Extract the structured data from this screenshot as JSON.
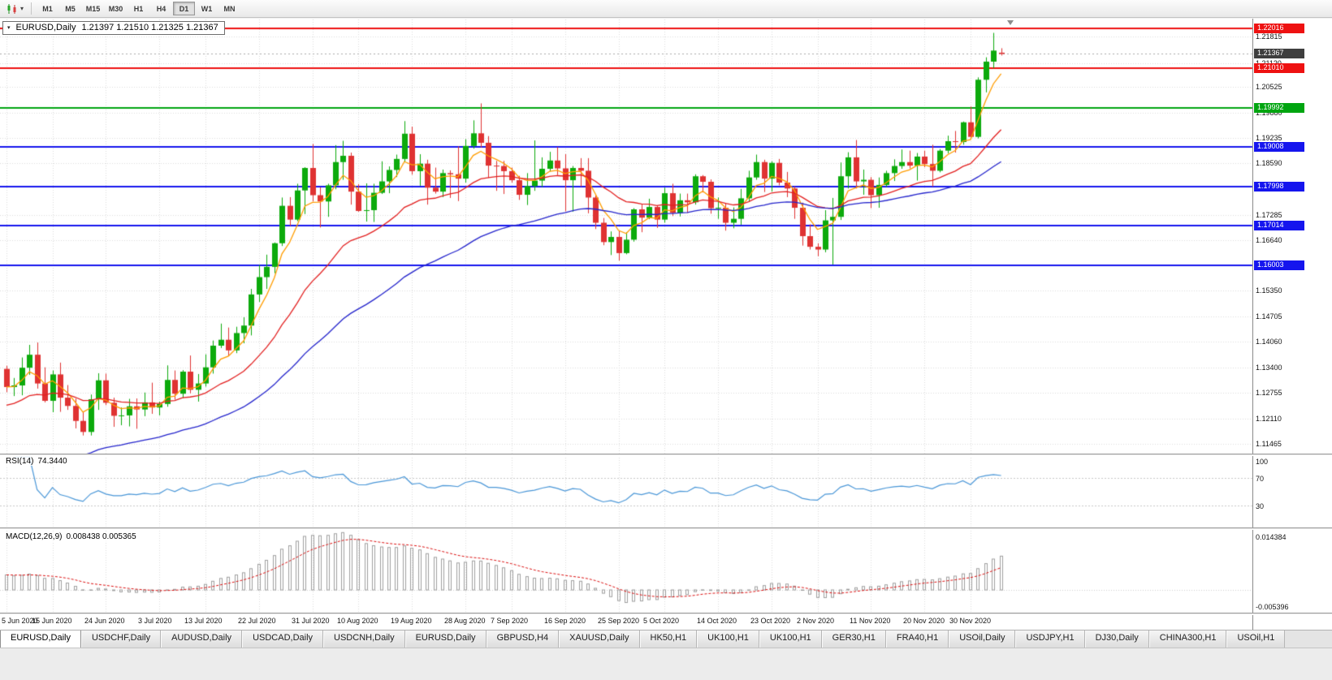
{
  "toolbar": {
    "timeframes": [
      "M1",
      "M5",
      "M15",
      "M30",
      "H1",
      "H4",
      "D1",
      "W1",
      "MN"
    ],
    "active_timeframe": "D1"
  },
  "chart": {
    "symbol_title": "EURUSD,Daily",
    "ohlc_text": "1.21397 1.21510 1.21325 1.21367",
    "current_price": 1.21367,
    "current_price_label": "1.21367",
    "colors": {
      "bull": "#0caa0c",
      "bear": "#df3232",
      "ma_fast": "#ff9d00",
      "ma_mid": "#e32020",
      "ma_slow": "#2424cc",
      "line_red": "#ee1111",
      "line_green": "#00a510",
      "line_blue": "#1515ee",
      "current_tag_bg": "#3e3e3e",
      "rsi_line": "#4a97d8",
      "macd_hist": "#9f9f9f",
      "macd_signal": "#dd1111",
      "grid": "#dcdcdc"
    },
    "price_ticks": [
      "1.21815",
      "1.21120",
      "1.20525",
      "1.19880",
      "1.19235",
      "1.18590",
      "1.17285",
      "1.16640",
      "1.15350",
      "1.14705",
      "1.14060",
      "1.13400",
      "1.12755",
      "1.12110",
      "1.11465"
    ],
    "hlines": [
      {
        "label": "1.22016",
        "price": 1.22016,
        "color_key": "line_red"
      },
      {
        "label": "1.21010",
        "price": 1.2101,
        "color_key": "line_red"
      },
      {
        "label": "1.19992",
        "price": 1.19992,
        "color_key": "line_green"
      },
      {
        "label": "1.19008",
        "price": 1.19008,
        "color_key": "line_blue"
      },
      {
        "label": "1.17998",
        "price": 1.17998,
        "color_key": "line_blue"
      },
      {
        "label": "1.17014",
        "price": 1.17014,
        "color_key": "line_blue"
      },
      {
        "label": "1.16003",
        "price": 1.16003,
        "color_key": "line_blue"
      }
    ]
  },
  "rsi_panel": {
    "title": "RSI(14)",
    "value": "74.3440",
    "period": 14,
    "levels": [
      {
        "label": "100",
        "value": 100
      },
      {
        "label": "70",
        "value": 70
      },
      {
        "label": "30",
        "value": 30
      }
    ]
  },
  "macd_panel": {
    "title": "MACD(12,26,9)",
    "values_text": "0.008438 0.005365",
    "fast": 12,
    "slow": 26,
    "signal": 9,
    "scale_top": "0.014384",
    "scale_bottom": "-0.005396",
    "scale_max": 0.014384,
    "scale_min": -0.005396
  },
  "chart_data": {
    "type": "candlestick",
    "symbol": "EURUSD",
    "timeframe": "Daily",
    "title": "EURUSD,Daily",
    "ylim": [
      1.1122,
      1.2224
    ],
    "moving_averages": [
      {
        "name": "fast",
        "period": 5,
        "color_key": "ma_fast",
        "seed": null
      },
      {
        "name": "medium",
        "period": 20,
        "color_key": "ma_mid",
        "seed": 1.124
      },
      {
        "name": "slow",
        "period": 45,
        "color_key": "ma_slow",
        "seed": 1.102
      }
    ],
    "date_ticks": [
      {
        "label": "5 Jun 2020",
        "index": 0
      },
      {
        "label": "15 Jun 2020",
        "index": 6
      },
      {
        "label": "24 Jun 2020",
        "index": 13
      },
      {
        "label": "3 Jul 2020",
        "index": 20
      },
      {
        "label": "13 Jul 2020",
        "index": 26
      },
      {
        "label": "22 Jul 2020",
        "index": 33
      },
      {
        "label": "31 Jul 2020",
        "index": 40
      },
      {
        "label": "10 Aug 2020",
        "index": 46
      },
      {
        "label": "19 Aug 2020",
        "index": 53
      },
      {
        "label": "28 Aug 2020",
        "index": 60
      },
      {
        "label": "7 Sep 2020",
        "index": 66
      },
      {
        "label": "16 Sep 2020",
        "index": 73
      },
      {
        "label": "25 Sep 2020",
        "index": 80
      },
      {
        "label": "5 Oct 2020",
        "index": 86
      },
      {
        "label": "14 Oct 2020",
        "index": 93
      },
      {
        "label": "23 Oct 2020",
        "index": 100
      },
      {
        "label": "2 Nov 2020",
        "index": 106
      },
      {
        "label": "11 Nov 2020",
        "index": 113
      },
      {
        "label": "20 Nov 2020",
        "index": 120
      },
      {
        "label": "30 Nov 2020",
        "index": 126
      }
    ],
    "candles": [
      [
        1.1337,
        1.1345,
        1.1278,
        1.1291
      ],
      [
        1.1291,
        1.1314,
        1.1268,
        1.1295
      ],
      [
        1.1295,
        1.1366,
        1.127,
        1.134
      ],
      [
        1.134,
        1.1398,
        1.1322,
        1.1373
      ],
      [
        1.1373,
        1.1404,
        1.1287,
        1.13
      ],
      [
        1.13,
        1.1341,
        1.1252,
        1.1256
      ],
      [
        1.1256,
        1.1333,
        1.1227,
        1.1323
      ],
      [
        1.1323,
        1.1353,
        1.1228,
        1.1264
      ],
      [
        1.1264,
        1.1296,
        1.1233,
        1.1243
      ],
      [
        1.1243,
        1.1262,
        1.1186,
        1.1205
      ],
      [
        1.1205,
        1.1229,
        1.1168,
        1.1177
      ],
      [
        1.1177,
        1.1272,
        1.1168,
        1.126
      ],
      [
        1.126,
        1.1326,
        1.1233,
        1.1308
      ],
      [
        1.1308,
        1.1325,
        1.1245,
        1.1251
      ],
      [
        1.1251,
        1.1264,
        1.119,
        1.1218
      ],
      [
        1.1218,
        1.1239,
        1.1194,
        1.1219
      ],
      [
        1.1219,
        1.1261,
        1.1191,
        1.1242
      ],
      [
        1.1242,
        1.1262,
        1.1185,
        1.1234
      ],
      [
        1.1234,
        1.1277,
        1.1217,
        1.1252
      ],
      [
        1.1252,
        1.1302,
        1.1223,
        1.1239
      ],
      [
        1.1239,
        1.1254,
        1.1219,
        1.1248
      ],
      [
        1.1248,
        1.1346,
        1.1241,
        1.1309
      ],
      [
        1.1309,
        1.1333,
        1.1259,
        1.1274
      ],
      [
        1.1274,
        1.1334,
        1.1263,
        1.133
      ],
      [
        1.133,
        1.1371,
        1.1275,
        1.1284
      ],
      [
        1.1284,
        1.1324,
        1.1254,
        1.13
      ],
      [
        1.13,
        1.1374,
        1.1292,
        1.1341
      ],
      [
        1.1341,
        1.1409,
        1.1325,
        1.1396
      ],
      [
        1.1396,
        1.1452,
        1.139,
        1.1411
      ],
      [
        1.1411,
        1.1442,
        1.137,
        1.1384
      ],
      [
        1.1384,
        1.1444,
        1.1377,
        1.1428
      ],
      [
        1.1428,
        1.1468,
        1.1402,
        1.1447
      ],
      [
        1.1447,
        1.154,
        1.1422,
        1.1526
      ],
      [
        1.1526,
        1.1601,
        1.1507,
        1.157
      ],
      [
        1.157,
        1.1627,
        1.154,
        1.1596
      ],
      [
        1.1596,
        1.1658,
        1.158,
        1.1656
      ],
      [
        1.1656,
        1.1772,
        1.1649,
        1.1751
      ],
      [
        1.1751,
        1.1773,
        1.17,
        1.1716
      ],
      [
        1.1716,
        1.1807,
        1.1712,
        1.179
      ],
      [
        1.179,
        1.1849,
        1.173,
        1.1847
      ],
      [
        1.1847,
        1.1908,
        1.1762,
        1.1778
      ],
      [
        1.1778,
        1.1798,
        1.1696,
        1.1762
      ],
      [
        1.1762,
        1.1807,
        1.1723,
        1.1803
      ],
      [
        1.1803,
        1.1905,
        1.1793,
        1.1862
      ],
      [
        1.1862,
        1.1916,
        1.1817,
        1.1878
      ],
      [
        1.1878,
        1.1886,
        1.1754,
        1.1787
      ],
      [
        1.1787,
        1.1806,
        1.1736,
        1.1738
      ],
      [
        1.1738,
        1.1808,
        1.1711,
        1.174
      ],
      [
        1.174,
        1.1807,
        1.171,
        1.1784
      ],
      [
        1.1784,
        1.1864,
        1.1781,
        1.1813
      ],
      [
        1.1813,
        1.1851,
        1.1783,
        1.1842
      ],
      [
        1.1842,
        1.1881,
        1.1824,
        1.187
      ],
      [
        1.187,
        1.1966,
        1.1862,
        1.1934
      ],
      [
        1.1934,
        1.1952,
        1.183,
        1.1839
      ],
      [
        1.1839,
        1.1882,
        1.1802,
        1.1858
      ],
      [
        1.1858,
        1.1868,
        1.1754,
        1.1797
      ],
      [
        1.1797,
        1.1848,
        1.1782,
        1.1787
      ],
      [
        1.1787,
        1.1843,
        1.1773,
        1.1834
      ],
      [
        1.1834,
        1.1841,
        1.1771,
        1.1831
      ],
      [
        1.1831,
        1.1902,
        1.1763,
        1.182
      ],
      [
        1.182,
        1.192,
        1.181,
        1.1903
      ],
      [
        1.1903,
        1.1968,
        1.1896,
        1.1935
      ],
      [
        1.1935,
        1.2011,
        1.1899,
        1.1911
      ],
      [
        1.1911,
        1.1928,
        1.1822,
        1.1853
      ],
      [
        1.1853,
        1.1865,
        1.1789,
        1.1852
      ],
      [
        1.1852,
        1.1865,
        1.1781,
        1.1839
      ],
      [
        1.1839,
        1.1848,
        1.181,
        1.1816
      ],
      [
        1.1816,
        1.1827,
        1.1766,
        1.1779
      ],
      [
        1.1779,
        1.1834,
        1.1753,
        1.1801
      ],
      [
        1.1801,
        1.1917,
        1.1789,
        1.1815
      ],
      [
        1.1815,
        1.1874,
        1.1799,
        1.1845
      ],
      [
        1.1845,
        1.1888,
        1.1838,
        1.1866
      ],
      [
        1.1866,
        1.19,
        1.1829,
        1.1846
      ],
      [
        1.1846,
        1.1882,
        1.1737,
        1.1816
      ],
      [
        1.1816,
        1.1852,
        1.1736,
        1.1847
      ],
      [
        1.1847,
        1.1872,
        1.18,
        1.184
      ],
      [
        1.184,
        1.1872,
        1.1732,
        1.1772
      ],
      [
        1.1772,
        1.1778,
        1.1692,
        1.1708
      ],
      [
        1.1708,
        1.172,
        1.1651,
        1.1659
      ],
      [
        1.1659,
        1.1686,
        1.1626,
        1.1672
      ],
      [
        1.1672,
        1.1688,
        1.1612,
        1.1631
      ],
      [
        1.1631,
        1.1684,
        1.1628,
        1.1665
      ],
      [
        1.1665,
        1.1745,
        1.166,
        1.1742
      ],
      [
        1.1742,
        1.1755,
        1.1684,
        1.1721
      ],
      [
        1.1721,
        1.1769,
        1.1717,
        1.1748
      ],
      [
        1.1748,
        1.1752,
        1.1695,
        1.1716
      ],
      [
        1.1716,
        1.1797,
        1.1708,
        1.1783
      ],
      [
        1.1783,
        1.1807,
        1.1725,
        1.1733
      ],
      [
        1.1733,
        1.1782,
        1.1724,
        1.1765
      ],
      [
        1.1765,
        1.1782,
        1.1733,
        1.176
      ],
      [
        1.176,
        1.1831,
        1.1754,
        1.1826
      ],
      [
        1.1826,
        1.1829,
        1.1785,
        1.1812
      ],
      [
        1.1812,
        1.1818,
        1.1731,
        1.1745
      ],
      [
        1.1745,
        1.1772,
        1.1718,
        1.1746
      ],
      [
        1.1746,
        1.1758,
        1.1688,
        1.1708
      ],
      [
        1.1708,
        1.1747,
        1.1694,
        1.1718
      ],
      [
        1.1718,
        1.1794,
        1.1703,
        1.177
      ],
      [
        1.177,
        1.184,
        1.1761,
        1.1823
      ],
      [
        1.1823,
        1.1881,
        1.1817,
        1.1862
      ],
      [
        1.1862,
        1.1868,
        1.1786,
        1.182
      ],
      [
        1.182,
        1.1864,
        1.1787,
        1.186
      ],
      [
        1.186,
        1.187,
        1.1803,
        1.181
      ],
      [
        1.181,
        1.1837,
        1.1773,
        1.1795
      ],
      [
        1.1795,
        1.18,
        1.1718,
        1.1746
      ],
      [
        1.1746,
        1.1759,
        1.165,
        1.1674
      ],
      [
        1.1674,
        1.1704,
        1.164,
        1.1647
      ],
      [
        1.1647,
        1.1656,
        1.1623,
        1.164
      ],
      [
        1.164,
        1.174,
        1.1633,
        1.1714
      ],
      [
        1.1714,
        1.1771,
        1.1602,
        1.1723
      ],
      [
        1.1723,
        1.1861,
        1.1715,
        1.1826
      ],
      [
        1.1826,
        1.1887,
        1.1795,
        1.1874
      ],
      [
        1.1874,
        1.1918,
        1.1795,
        1.1813
      ],
      [
        1.1813,
        1.1843,
        1.1779,
        1.1817
      ],
      [
        1.1817,
        1.1824,
        1.1745,
        1.1778
      ],
      [
        1.1778,
        1.1823,
        1.1746,
        1.1804
      ],
      [
        1.1804,
        1.184,
        1.1799,
        1.1834
      ],
      [
        1.1834,
        1.1869,
        1.1814,
        1.1852
      ],
      [
        1.1852,
        1.1894,
        1.1845,
        1.1862
      ],
      [
        1.1862,
        1.1891,
        1.1846,
        1.1853
      ],
      [
        1.1853,
        1.1885,
        1.1815,
        1.1876
      ],
      [
        1.1876,
        1.1891,
        1.1849,
        1.1857
      ],
      [
        1.1857,
        1.1906,
        1.18,
        1.184
      ],
      [
        1.184,
        1.1895,
        1.1836,
        1.1891
      ],
      [
        1.1891,
        1.1929,
        1.1884,
        1.1915
      ],
      [
        1.1915,
        1.1941,
        1.1886,
        1.1913
      ],
      [
        1.1913,
        1.1965,
        1.1906,
        1.1963
      ],
      [
        1.1963,
        1.2003,
        1.1924,
        1.1926
      ],
      [
        1.1926,
        1.2077,
        1.1922,
        1.2071
      ],
      [
        1.2071,
        1.2128,
        1.2039,
        1.2117
      ],
      [
        1.2117,
        1.219,
        1.21,
        1.2145
      ],
      [
        1.21397,
        1.2151,
        1.21325,
        1.21367
      ]
    ]
  },
  "tabs": [
    {
      "label": "EURUSD,Daily",
      "active": true
    },
    {
      "label": "USDCHF,Daily"
    },
    {
      "label": "AUDUSD,Daily"
    },
    {
      "label": "USDCAD,Daily"
    },
    {
      "label": "USDCNH,Daily"
    },
    {
      "label": "EURUSD,Daily"
    },
    {
      "label": "GBPUSD,H4"
    },
    {
      "label": "XAUUSD,Daily"
    },
    {
      "label": "HK50,H1"
    },
    {
      "label": "UK100,H1"
    },
    {
      "label": "UK100,H1"
    },
    {
      "label": "GER30,H1"
    },
    {
      "label": "FRA40,H1"
    },
    {
      "label": "USOil,Daily"
    },
    {
      "label": "USDJPY,H1"
    },
    {
      "label": "DJ30,Daily"
    },
    {
      "label": "CHINA300,H1"
    },
    {
      "label": "USOil,H1"
    }
  ]
}
